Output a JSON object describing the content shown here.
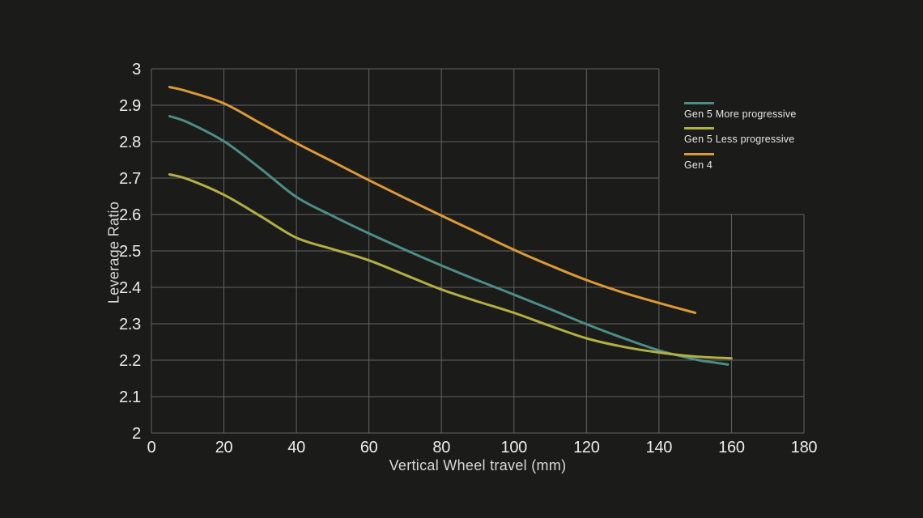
{
  "style": {
    "background": "#1b1b1a",
    "grid_color": "#63635f",
    "tick_text_color": "#ececea",
    "axis_title_color": "#d9d9d6",
    "legend_text_color": "#e6e6e3"
  },
  "chart_data": {
    "type": "line",
    "title": "",
    "xlabel": "Vertical Wheel travel (mm)",
    "ylabel": "Leverage Ratio",
    "xlim": [
      0,
      180
    ],
    "ylim": [
      2,
      3
    ],
    "x_ticks": [
      0,
      20,
      40,
      60,
      80,
      100,
      120,
      140,
      160,
      180
    ],
    "y_ticks": [
      3,
      2.9,
      2.8,
      2.7,
      2.6,
      2.5,
      2.4,
      2.3,
      2.2,
      2.1,
      2
    ],
    "grid": true,
    "legend_position": "top-right",
    "series": [
      {
        "name": "Gen 5 More progressive",
        "color": "#4d8d87",
        "points": [
          [
            5,
            2.87
          ],
          [
            10,
            2.853
          ],
          [
            20,
            2.801
          ],
          [
            30,
            2.727
          ],
          [
            40,
            2.648
          ],
          [
            50,
            2.596
          ],
          [
            60,
            2.548
          ],
          [
            70,
            2.503
          ],
          [
            80,
            2.46
          ],
          [
            90,
            2.419
          ],
          [
            100,
            2.38
          ],
          [
            110,
            2.34
          ],
          [
            120,
            2.299
          ],
          [
            130,
            2.261
          ],
          [
            140,
            2.227
          ],
          [
            150,
            2.202
          ],
          [
            155,
            2.194
          ],
          [
            159,
            2.188
          ]
        ]
      },
      {
        "name": "Gen 5 Less progressive",
        "color": "#b3b042",
        "points": [
          [
            5,
            2.71
          ],
          [
            10,
            2.697
          ],
          [
            20,
            2.654
          ],
          [
            30,
            2.596
          ],
          [
            40,
            2.536
          ],
          [
            50,
            2.505
          ],
          [
            60,
            2.474
          ],
          [
            70,
            2.434
          ],
          [
            80,
            2.394
          ],
          [
            90,
            2.361
          ],
          [
            100,
            2.33
          ],
          [
            110,
            2.294
          ],
          [
            120,
            2.26
          ],
          [
            130,
            2.237
          ],
          [
            140,
            2.221
          ],
          [
            150,
            2.21
          ],
          [
            160,
            2.205
          ]
        ]
      },
      {
        "name": "Gen 4",
        "color": "#dc9a35",
        "points": [
          [
            5,
            2.95
          ],
          [
            10,
            2.938
          ],
          [
            20,
            2.905
          ],
          [
            30,
            2.851
          ],
          [
            40,
            2.796
          ],
          [
            50,
            2.745
          ],
          [
            60,
            2.694
          ],
          [
            70,
            2.645
          ],
          [
            80,
            2.597
          ],
          [
            90,
            2.55
          ],
          [
            100,
            2.503
          ],
          [
            110,
            2.46
          ],
          [
            120,
            2.42
          ],
          [
            130,
            2.386
          ],
          [
            140,
            2.357
          ],
          [
            150,
            2.33
          ]
        ]
      }
    ]
  }
}
